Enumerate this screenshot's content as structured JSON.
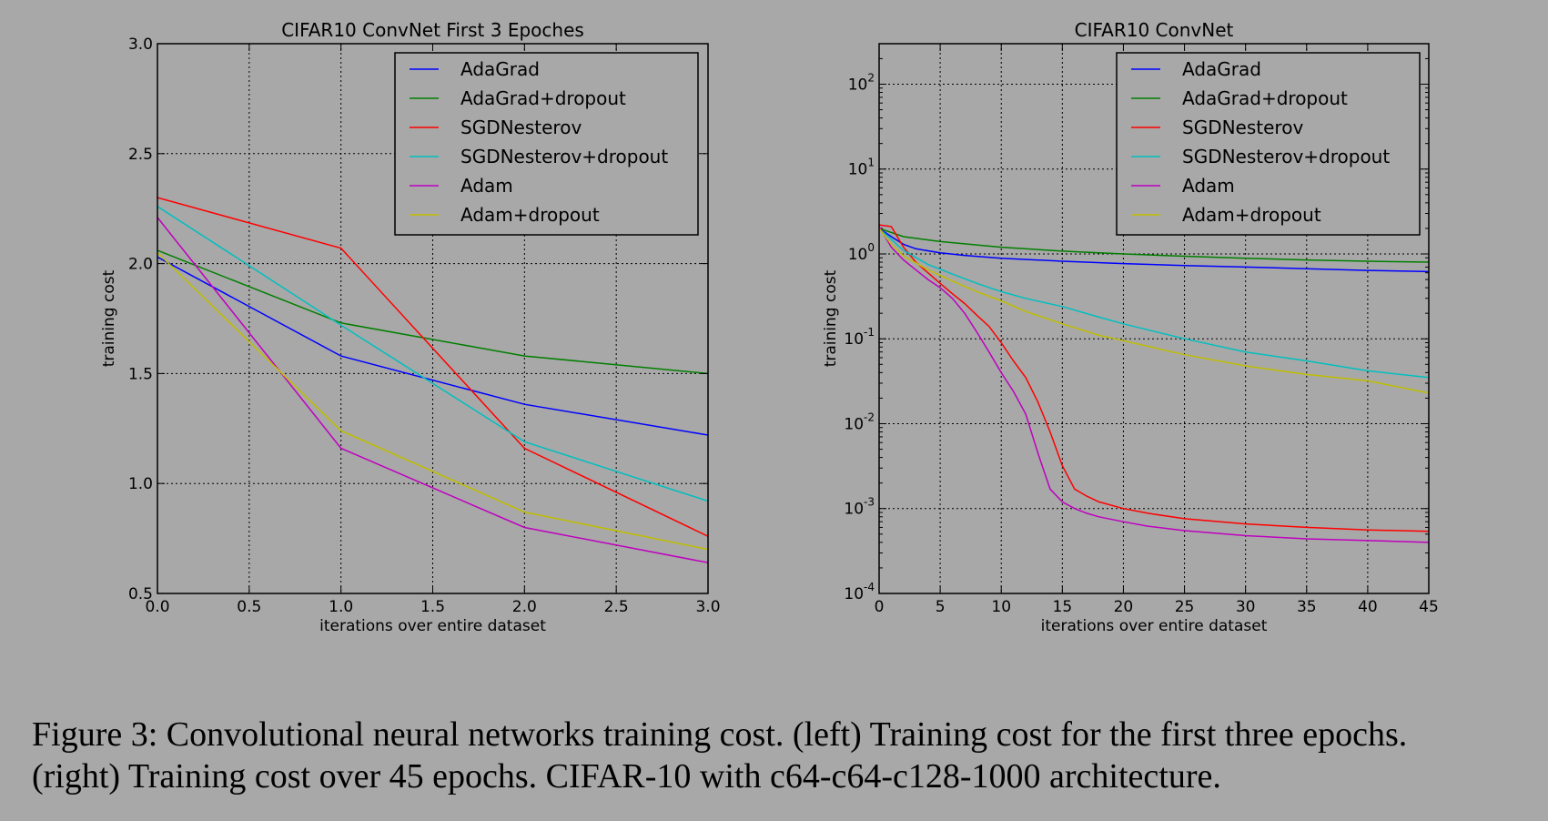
{
  "caption": {
    "line1": "Figure 3: Convolutional neural networks training cost. (left) Training cost for the first three epochs.",
    "line2": "(right) Training cost over 45 epochs. CIFAR-10 with c64-c64-c128-1000 architecture."
  },
  "colors": {
    "background": "#a8a8a8",
    "AdaGrad": "#0000ff",
    "AdaGrad+dropout": "#007f00",
    "SGDNesterov": "#ff0000",
    "SGDNesterov+dropout": "#00bfbf",
    "Adam": "#bf00bf",
    "Adam+dropout": "#bfbf00"
  },
  "chart_data": [
    {
      "type": "line",
      "title": "CIFAR10 ConvNet First 3 Epoches",
      "xlabel": "iterations over entire dataset",
      "ylabel": "training cost",
      "xlim": [
        0,
        3
      ],
      "ylim": [
        0.5,
        3.0
      ],
      "yscale": "linear",
      "grid": true,
      "legend_position": "top-right",
      "xticks": [
        "0.0",
        "0.5",
        "1.0",
        "1.5",
        "2.0",
        "2.5",
        "3.0"
      ],
      "yticks": [
        "0.5",
        "1.0",
        "1.5",
        "2.0",
        "2.5",
        "3.0"
      ],
      "series": [
        {
          "name": "AdaGrad",
          "x": [
            0,
            1,
            2,
            3
          ],
          "y": [
            2.03,
            1.58,
            1.36,
            1.22
          ]
        },
        {
          "name": "AdaGrad+dropout",
          "x": [
            0,
            1,
            2,
            3
          ],
          "y": [
            2.06,
            1.73,
            1.58,
            1.5
          ]
        },
        {
          "name": "SGDNesterov",
          "x": [
            0,
            1,
            2,
            3
          ],
          "y": [
            2.3,
            2.07,
            1.16,
            0.76
          ]
        },
        {
          "name": "SGDNesterov+dropout",
          "x": [
            0,
            1,
            2,
            3
          ],
          "y": [
            2.26,
            1.72,
            1.19,
            0.92
          ]
        },
        {
          "name": "Adam",
          "x": [
            0,
            1,
            2,
            3
          ],
          "y": [
            2.21,
            1.16,
            0.8,
            0.64
          ]
        },
        {
          "name": "Adam+dropout",
          "x": [
            0,
            1,
            2,
            3
          ],
          "y": [
            2.05,
            1.24,
            0.87,
            0.7
          ]
        }
      ]
    },
    {
      "type": "line",
      "title": "CIFAR10 ConvNet",
      "xlabel": "iterations over entire dataset",
      "ylabel": "training cost",
      "xlim": [
        0,
        45
      ],
      "ylim": [
        0.0001,
        300
      ],
      "yscale": "log",
      "grid": true,
      "legend_position": "top-right",
      "xticks": [
        "0",
        "5",
        "10",
        "15",
        "20",
        "25",
        "30",
        "35",
        "40",
        "45"
      ],
      "yticks": [
        {
          "base": "10",
          "exp": "-4",
          "value": 0.0001
        },
        {
          "base": "10",
          "exp": "-3",
          "value": 0.001
        },
        {
          "base": "10",
          "exp": "-2",
          "value": 0.01
        },
        {
          "base": "10",
          "exp": "-1",
          "value": 0.1
        },
        {
          "base": "10",
          "exp": "0",
          "value": 1
        },
        {
          "base": "10",
          "exp": "1",
          "value": 10
        },
        {
          "base": "10",
          "exp": "2",
          "value": 100
        }
      ],
      "series": [
        {
          "name": "AdaGrad",
          "x": [
            0,
            1,
            2,
            3,
            5,
            7,
            10,
            15,
            20,
            25,
            30,
            35,
            40,
            45
          ],
          "y": [
            2.0,
            1.6,
            1.3,
            1.15,
            1.03,
            0.96,
            0.89,
            0.82,
            0.77,
            0.73,
            0.7,
            0.67,
            0.64,
            0.62
          ]
        },
        {
          "name": "AdaGrad+dropout",
          "x": [
            0,
            2,
            5,
            10,
            15,
            20,
            25,
            30,
            35,
            40,
            45
          ],
          "y": [
            2.0,
            1.6,
            1.4,
            1.2,
            1.08,
            1.0,
            0.94,
            0.89,
            0.85,
            0.82,
            0.8
          ]
        },
        {
          "name": "SGDNesterov",
          "x": [
            0,
            1,
            2,
            3,
            4,
            5,
            6,
            7,
            8,
            9,
            10,
            11,
            12,
            13,
            14,
            15,
            16,
            17,
            18,
            20,
            22,
            25,
            30,
            35,
            40,
            45
          ],
          "y": [
            2.2,
            2.1,
            1.2,
            0.8,
            0.6,
            0.45,
            0.34,
            0.26,
            0.19,
            0.14,
            0.09,
            0.055,
            0.035,
            0.018,
            0.008,
            0.0032,
            0.0017,
            0.0014,
            0.0012,
            0.001,
            0.00088,
            0.00076,
            0.00066,
            0.0006,
            0.00056,
            0.00054
          ]
        },
        {
          "name": "SGDNesterov+dropout",
          "x": [
            0,
            2,
            4,
            6,
            8,
            10,
            12,
            15,
            18,
            20,
            25,
            30,
            35,
            40,
            45
          ],
          "y": [
            2.0,
            1.1,
            0.75,
            0.58,
            0.45,
            0.36,
            0.3,
            0.24,
            0.18,
            0.15,
            0.1,
            0.07,
            0.055,
            0.042,
            0.035
          ]
        },
        {
          "name": "Adam",
          "x": [
            0,
            1,
            2,
            3,
            4,
            5,
            6,
            7,
            8,
            9,
            10,
            11,
            12,
            13,
            14,
            15,
            16,
            17,
            18,
            20,
            22,
            25,
            30,
            35,
            40,
            45
          ],
          "y": [
            2.1,
            1.2,
            0.85,
            0.65,
            0.5,
            0.4,
            0.3,
            0.2,
            0.12,
            0.07,
            0.04,
            0.024,
            0.013,
            0.0045,
            0.0017,
            0.0012,
            0.001,
            0.00088,
            0.0008,
            0.0007,
            0.00062,
            0.00055,
            0.00048,
            0.00044,
            0.00042,
            0.0004
          ]
        },
        {
          "name": "Adam+dropout",
          "x": [
            0,
            1,
            2,
            4,
            6,
            8,
            10,
            12,
            15,
            18,
            20,
            25,
            30,
            35,
            40,
            45
          ],
          "y": [
            2.0,
            1.3,
            0.95,
            0.65,
            0.48,
            0.36,
            0.28,
            0.21,
            0.15,
            0.11,
            0.095,
            0.065,
            0.048,
            0.038,
            0.032,
            0.023
          ]
        }
      ]
    }
  ]
}
